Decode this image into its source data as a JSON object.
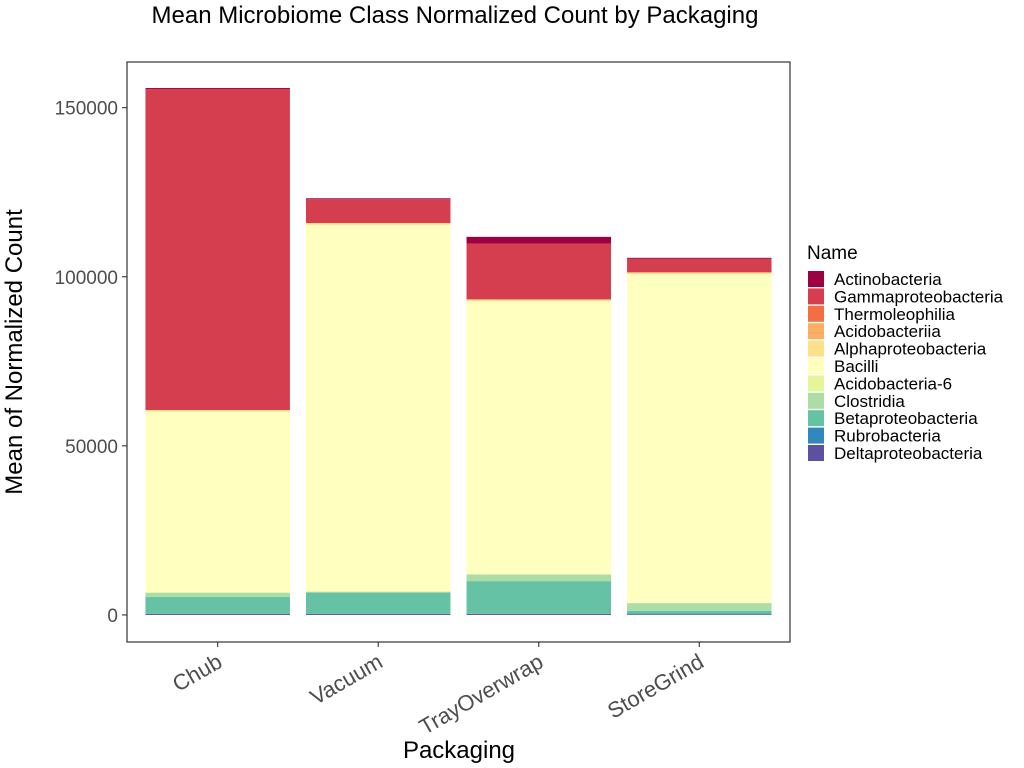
{
  "chart_data": {
    "type": "bar",
    "stacked": true,
    "title": "Mean Microbiome Class Normalized Count by Packaging",
    "xlabel": "Packaging",
    "ylabel": "Mean of Normalized Count",
    "categories": [
      "Chub",
      "Vacuum",
      "TrayOverwrap",
      "StoreGrind"
    ],
    "ylim": [
      -8000,
      163500
    ],
    "yticks": [
      0,
      50000,
      100000,
      150000
    ],
    "ytick_labels": [
      "0",
      "50000",
      "100000",
      "150000"
    ],
    "grid": false,
    "legend": {
      "title": "Name",
      "position": "right"
    },
    "series": [
      {
        "name": "Actinobacteria",
        "color": "#9E0142",
        "values": [
          300,
          300,
          2000,
          300
        ]
      },
      {
        "name": "Gammaproteobacteria",
        "color": "#D53E4F",
        "values": [
          94900,
          7000,
          16500,
          4000
        ]
      },
      {
        "name": "Thermoleophilia",
        "color": "#F46D43",
        "values": [
          0,
          0,
          0,
          0
        ]
      },
      {
        "name": "Acidobacteriia",
        "color": "#FDAE61",
        "values": [
          0,
          0,
          0,
          0
        ]
      },
      {
        "name": "Alphaproteobacteria",
        "color": "#FEE08B",
        "values": [
          500,
          500,
          500,
          500
        ]
      },
      {
        "name": "Bacilli",
        "color": "#FFFFBF",
        "values": [
          53500,
          108500,
          80800,
          97300
        ]
      },
      {
        "name": "Acidobacteria-6",
        "color": "#E6F598",
        "values": [
          0,
          0,
          0,
          0
        ]
      },
      {
        "name": "Clostridia",
        "color": "#ABDDA4",
        "values": [
          1300,
          300,
          2000,
          2300
        ]
      },
      {
        "name": "Betaproteobacteria",
        "color": "#66C2A5",
        "values": [
          5000,
          6300,
          9700,
          800
        ]
      },
      {
        "name": "Rubrobacteria",
        "color": "#3288BD",
        "values": [
          0,
          0,
          0,
          200
        ]
      },
      {
        "name": "Deltaproteobacteria",
        "color": "#5E4FA2",
        "values": [
          300,
          300,
          300,
          200
        ]
      }
    ]
  }
}
